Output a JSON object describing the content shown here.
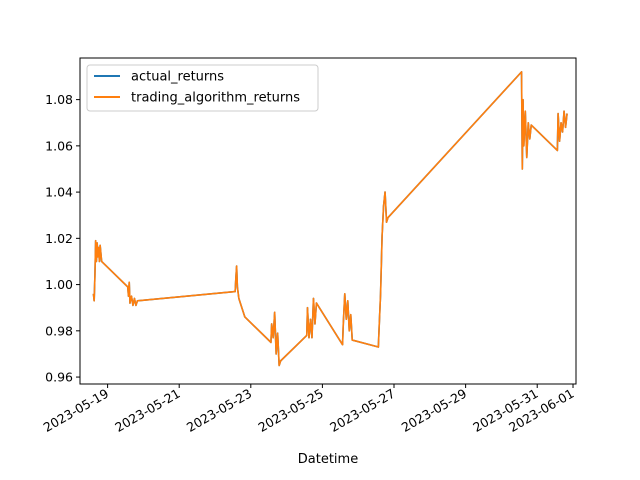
{
  "chart_data": {
    "type": "line",
    "title": "",
    "xlabel": "Datetime",
    "ylabel": "",
    "x_ticks": [
      "2023-05-19",
      "2023-05-21",
      "2023-05-23",
      "2023-05-25",
      "2023-05-27",
      "2023-05-29",
      "2023-05-31",
      "2023-06-01"
    ],
    "y_ticks": [
      "0.96",
      "0.98",
      "1.00",
      "1.02",
      "1.04",
      "1.06",
      "1.08"
    ],
    "ylim": [
      0.957,
      1.098
    ],
    "xlim": [
      "2023-05-18T05:30",
      "2023-06-01T02:00"
    ],
    "legend": {
      "placement": "upper-left"
    },
    "grid": false,
    "series": [
      {
        "name": "actual_returns",
        "color": "#1f77b4",
        "points": [
          [
            "2023-05-18T14:30",
            0.996
          ],
          [
            "2023-05-18T15:00",
            0.993
          ],
          [
            "2023-05-18T15:30",
            1.004
          ],
          [
            "2023-05-18T16:00",
            1.019
          ],
          [
            "2023-05-18T16:30",
            1.01
          ],
          [
            "2023-05-18T17:00",
            1.018
          ],
          [
            "2023-05-18T17:30",
            1.012
          ],
          [
            "2023-05-18T18:00",
            1.016
          ],
          [
            "2023-05-18T18:30",
            1.01
          ],
          [
            "2023-05-18T19:00",
            1.017
          ],
          [
            "2023-05-18T20:00",
            1.01
          ],
          [
            "2023-05-19T13:30",
            0.999
          ],
          [
            "2023-05-19T14:00",
            0.995
          ],
          [
            "2023-05-19T14:30",
            1.001
          ],
          [
            "2023-05-19T15:00",
            0.992
          ],
          [
            "2023-05-19T16:00",
            0.995
          ],
          [
            "2023-05-19T17:00",
            0.991
          ],
          [
            "2023-05-19T18:00",
            0.994
          ],
          [
            "2023-05-19T19:00",
            0.991
          ],
          [
            "2023-05-19T20:00",
            0.993
          ],
          [
            "2023-05-22T13:30",
            0.997
          ],
          [
            "2023-05-22T14:00",
            1.003
          ],
          [
            "2023-05-22T14:30",
            1.008
          ],
          [
            "2023-05-22T15:00",
            0.999
          ],
          [
            "2023-05-22T16:00",
            0.994
          ],
          [
            "2023-05-22T18:00",
            0.99
          ],
          [
            "2023-05-22T20:00",
            0.986
          ],
          [
            "2023-05-23T13:30",
            0.975
          ],
          [
            "2023-05-23T14:00",
            0.983
          ],
          [
            "2023-05-23T15:00",
            0.977
          ],
          [
            "2023-05-23T16:00",
            0.988
          ],
          [
            "2023-05-23T17:00",
            0.97
          ],
          [
            "2023-05-23T18:00",
            0.979
          ],
          [
            "2023-05-23T19:00",
            0.965
          ],
          [
            "2023-05-23T20:00",
            0.967
          ],
          [
            "2023-05-24T13:30",
            0.978
          ],
          [
            "2023-05-24T14:00",
            0.99
          ],
          [
            "2023-05-24T15:00",
            0.977
          ],
          [
            "2023-05-24T16:00",
            0.985
          ],
          [
            "2023-05-24T17:00",
            0.977
          ],
          [
            "2023-05-24T18:00",
            0.994
          ],
          [
            "2023-05-24T19:00",
            0.983
          ],
          [
            "2023-05-24T20:00",
            0.992
          ],
          [
            "2023-05-25T13:30",
            0.974
          ],
          [
            "2023-05-25T14:00",
            0.983
          ],
          [
            "2023-05-25T15:00",
            0.996
          ],
          [
            "2023-05-25T16:00",
            0.985
          ],
          [
            "2023-05-25T17:00",
            0.993
          ],
          [
            "2023-05-25T18:00",
            0.98
          ],
          [
            "2023-05-25T19:00",
            0.987
          ],
          [
            "2023-05-25T20:00",
            0.976
          ],
          [
            "2023-05-26T13:30",
            0.973
          ],
          [
            "2023-05-26T14:00",
            0.981
          ],
          [
            "2023-05-26T15:00",
            0.996
          ],
          [
            "2023-05-26T16:00",
            1.021
          ],
          [
            "2023-05-26T17:00",
            1.034
          ],
          [
            "2023-05-26T18:00",
            1.04
          ],
          [
            "2023-05-26T19:00",
            1.027
          ],
          [
            "2023-05-26T20:00",
            1.029
          ],
          [
            "2023-05-30T13:30",
            1.092
          ],
          [
            "2023-05-30T14:00",
            1.05
          ],
          [
            "2023-05-30T14:30",
            1.08
          ],
          [
            "2023-05-30T15:00",
            1.06
          ],
          [
            "2023-05-30T16:00",
            1.075
          ],
          [
            "2023-05-30T17:00",
            1.055
          ],
          [
            "2023-05-30T18:00",
            1.07
          ],
          [
            "2023-05-30T19:00",
            1.063
          ],
          [
            "2023-05-30T20:00",
            1.069
          ],
          [
            "2023-05-31T13:30",
            1.058
          ],
          [
            "2023-05-31T14:00",
            1.074
          ],
          [
            "2023-05-31T15:00",
            1.062
          ],
          [
            "2023-05-31T16:00",
            1.07
          ],
          [
            "2023-05-31T17:00",
            1.066
          ],
          [
            "2023-05-31T18:00",
            1.075
          ],
          [
            "2023-05-31T19:00",
            1.068
          ],
          [
            "2023-05-31T20:00",
            1.074
          ]
        ]
      },
      {
        "name": "trading_algorithm_returns",
        "color": "#ff7f0e",
        "same_as": "actual_returns"
      }
    ]
  }
}
